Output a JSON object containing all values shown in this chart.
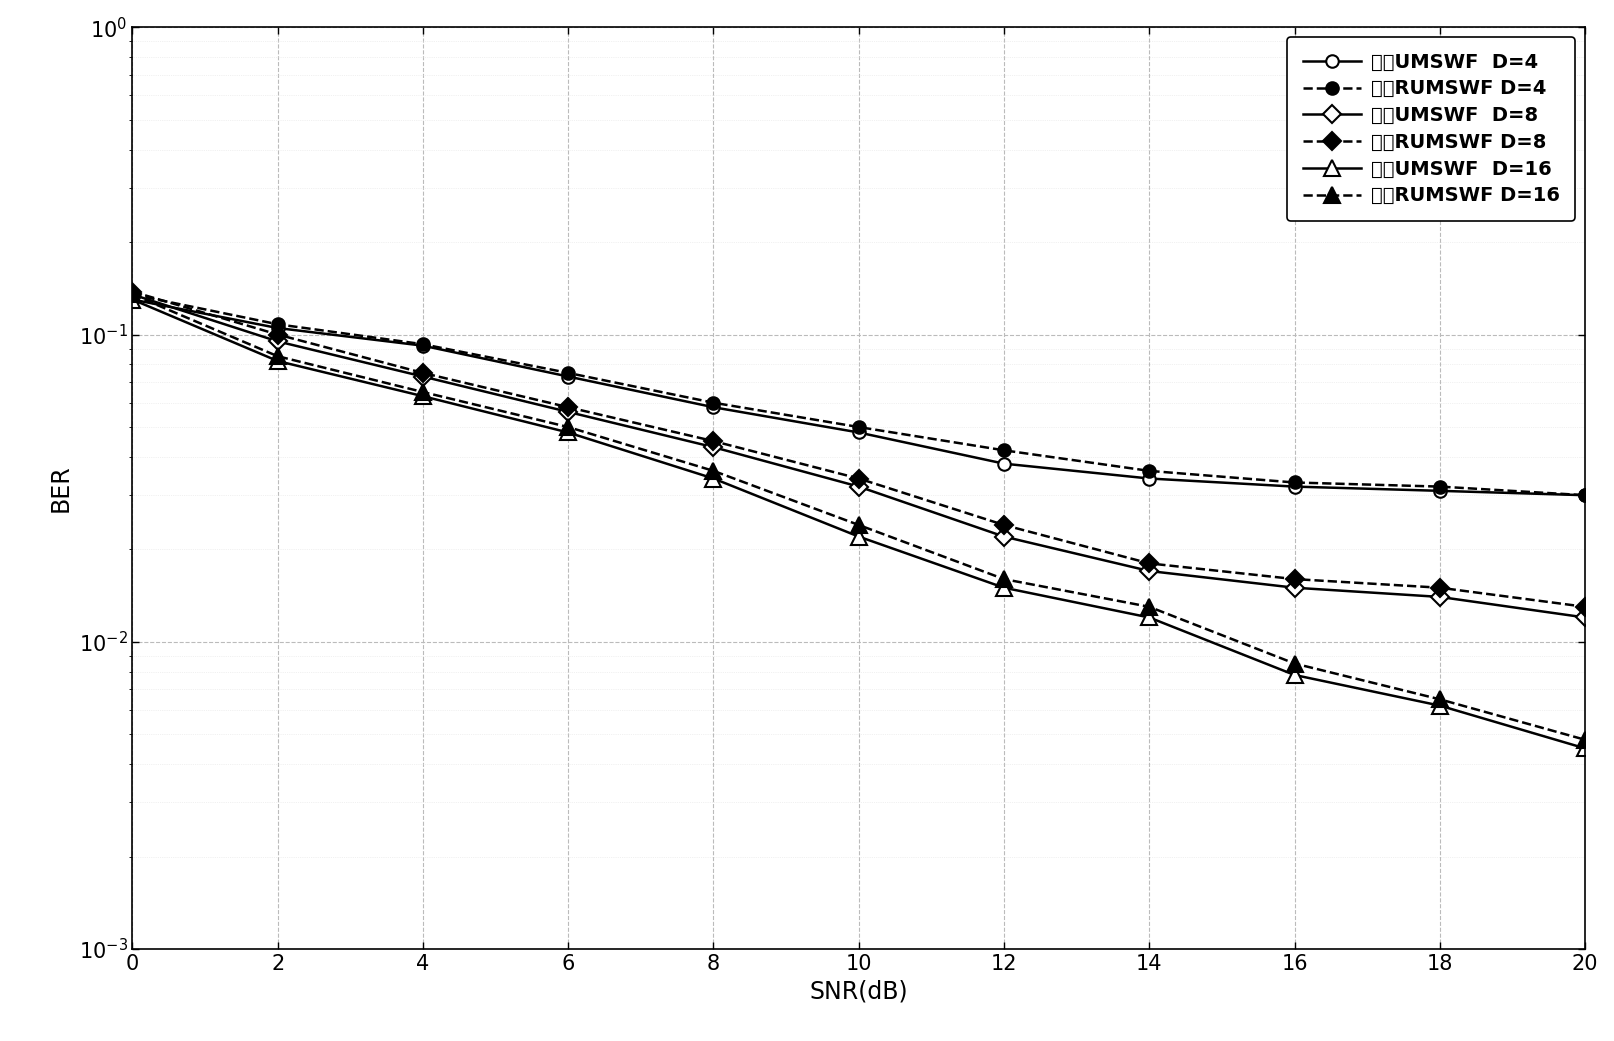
{
  "snr": [
    0,
    2,
    4,
    6,
    8,
    10,
    12,
    14,
    16,
    18,
    20
  ],
  "series": [
    {
      "label": "基于UMSWF  D=4",
      "style": "solid",
      "marker": "o",
      "markerfill": "white",
      "linewidth": 1.8,
      "ber": [
        0.13,
        0.105,
        0.092,
        0.073,
        0.058,
        0.048,
        0.038,
        0.034,
        0.032,
        0.031,
        0.03
      ]
    },
    {
      "label": "基于RUMSWF D=4",
      "style": "dashed",
      "marker": "o",
      "markerfill": "black",
      "linewidth": 1.8,
      "ber": [
        0.135,
        0.108,
        0.093,
        0.075,
        0.06,
        0.05,
        0.042,
        0.036,
        0.033,
        0.032,
        0.03
      ]
    },
    {
      "label": "基于UMSWF  D=8",
      "style": "solid",
      "marker": "D",
      "markerfill": "white",
      "linewidth": 1.8,
      "ber": [
        0.135,
        0.095,
        0.073,
        0.056,
        0.043,
        0.032,
        0.022,
        0.017,
        0.015,
        0.014,
        0.012
      ]
    },
    {
      "label": "基于RUMSWF D=8",
      "style": "dashed",
      "marker": "D",
      "markerfill": "black",
      "linewidth": 1.8,
      "ber": [
        0.138,
        0.1,
        0.075,
        0.058,
        0.045,
        0.034,
        0.024,
        0.018,
        0.016,
        0.015,
        0.013
      ]
    },
    {
      "label": "基于UMSWF  D=16",
      "style": "solid",
      "marker": "^",
      "markerfill": "white",
      "linewidth": 1.8,
      "ber": [
        0.13,
        0.082,
        0.063,
        0.048,
        0.034,
        0.022,
        0.015,
        0.012,
        0.0078,
        0.0062,
        0.0045
      ]
    },
    {
      "label": "基于RUMSWF D=16",
      "style": "dashed",
      "marker": "^",
      "markerfill": "black",
      "linewidth": 1.8,
      "ber": [
        0.135,
        0.085,
        0.065,
        0.05,
        0.036,
        0.024,
        0.016,
        0.013,
        0.0085,
        0.0065,
        0.0048
      ]
    }
  ],
  "xlabel": "SNR(dB)",
  "ylabel": "BER",
  "xlim": [
    0,
    20
  ],
  "ylim": [
    0.001,
    1.0
  ],
  "xticks": [
    0,
    2,
    4,
    6,
    8,
    10,
    12,
    14,
    16,
    18,
    20
  ],
  "background_color": "#ffffff",
  "grid_major_color": "#bbbbbb",
  "grid_minor_color": "#dddddd",
  "legend_fontsize": 14,
  "axis_label_fontsize": 17,
  "tick_fontsize": 15
}
